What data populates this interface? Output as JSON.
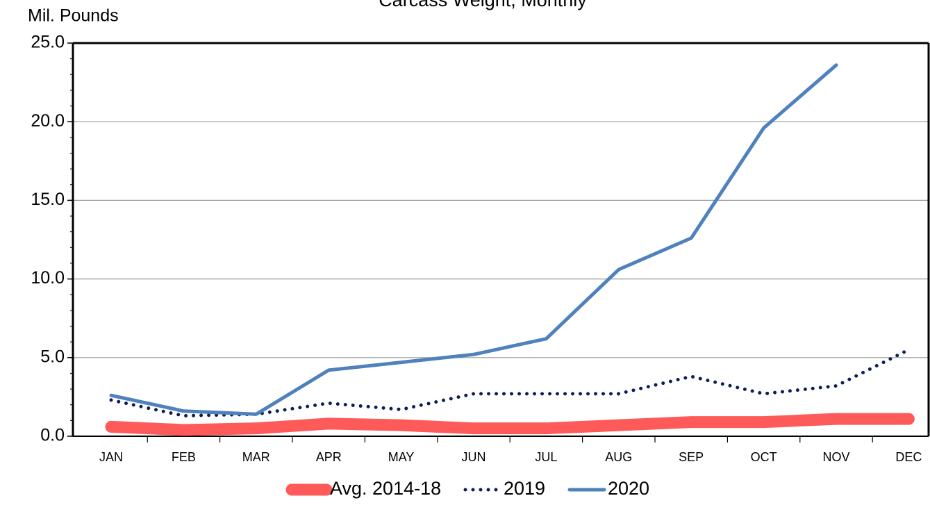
{
  "chart_data": {
    "type": "line",
    "title": "Carcass Weight, Monthly",
    "y_label": "Mil. Pounds",
    "categories": [
      "JAN",
      "FEB",
      "MAR",
      "APR",
      "MAY",
      "JUN",
      "JUL",
      "AUG",
      "SEP",
      "OCT",
      "NOV",
      "DEC"
    ],
    "series": [
      {
        "name": "Avg. 2014-18",
        "color": "#ff5a5a",
        "style": "thick",
        "values": [
          0.6,
          0.4,
          0.5,
          0.8,
          0.7,
          0.5,
          0.5,
          0.7,
          0.9,
          0.9,
          1.1,
          1.1
        ]
      },
      {
        "name": "2019",
        "color": "#0b1e5b",
        "style": "dotted",
        "values": [
          2.3,
          1.3,
          1.4,
          2.1,
          1.7,
          2.7,
          2.7,
          2.7,
          3.8,
          2.7,
          3.2,
          5.5
        ]
      },
      {
        "name": "2020",
        "color": "#4f81bd",
        "style": "solid",
        "values": [
          2.6,
          1.6,
          1.4,
          4.2,
          4.7,
          5.2,
          6.2,
          10.6,
          12.6,
          19.6,
          23.6,
          null
        ]
      }
    ],
    "ylim": [
      0,
      25
    ],
    "yticks": [
      {
        "value": 0,
        "label": "0.0"
      },
      {
        "value": 5,
        "label": "5.0"
      },
      {
        "value": 10,
        "label": "10.0"
      },
      {
        "value": 15,
        "label": "15.0"
      },
      {
        "value": 20,
        "label": "20.0"
      },
      {
        "value": 25,
        "label": "25.0"
      }
    ],
    "grid": true,
    "legend": "bottom"
  }
}
